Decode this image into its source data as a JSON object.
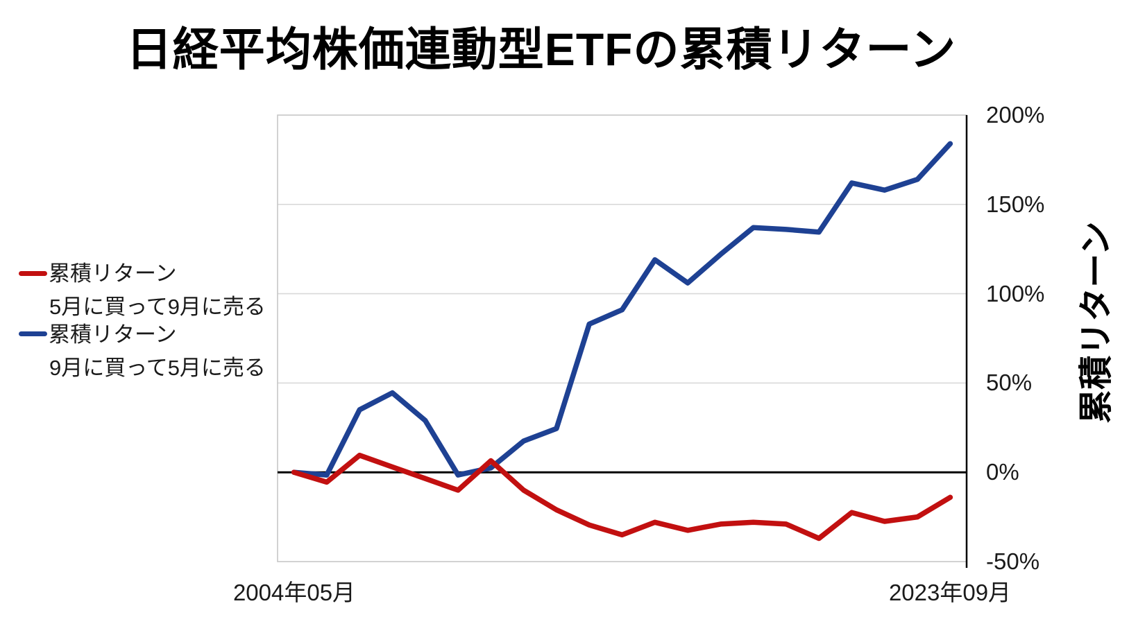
{
  "title": "日経平均株価連動型ETFの累積リターン",
  "legend": {
    "items": [
      {
        "label": "累積リターン",
        "sublabel": "5月に買って9月に売る",
        "color": "#C21010"
      },
      {
        "label": "累積リターン",
        "sublabel": "9月に買って5月に売る",
        "color": "#1E4193"
      }
    ]
  },
  "y_axis": {
    "title": "累積リターン",
    "tick_labels": [
      "200%",
      "150%",
      "100%",
      "50%",
      "0%",
      "-50%"
    ]
  },
  "x_axis": {
    "first_label": "2004年05月",
    "last_label": "2023年09月"
  },
  "chart_data": {
    "type": "line",
    "title": "日経平均株価連動型ETFの累積リターン",
    "ylabel": "累積リターン",
    "ylim": [
      -50,
      200
    ],
    "y_tick_step": 50,
    "y_unit": "%",
    "grid": "horizontal",
    "zero_line": true,
    "legend_position": "left",
    "n_points": 21,
    "x_first_label": "2004年05月",
    "x_last_label": "2023年09月",
    "x_note": "21 yearly points from 2004年05月 start to 2023年09月, evenly spaced",
    "series": [
      {
        "name": "累積リターン（5月に買って9月に売る）",
        "color": "#C21010",
        "values_pct": [
          0,
          -5.5,
          9.5,
          3,
          -3.5,
          -10,
          6.5,
          -10,
          -21,
          -29.5,
          -35,
          -28,
          -32.5,
          -29,
          -28,
          -29,
          -37,
          -22.5,
          -27.5,
          -25,
          -14
        ]
      },
      {
        "name": "累積リターン（9月に買って5月に売る）",
        "color": "#1E4193",
        "values_pct": [
          0,
          -1.5,
          35,
          44.5,
          29,
          -1.5,
          2.5,
          17.5,
          24.5,
          83,
          91,
          119,
          106,
          122,
          137,
          136,
          134.5,
          162,
          158,
          164,
          184
        ]
      }
    ]
  }
}
